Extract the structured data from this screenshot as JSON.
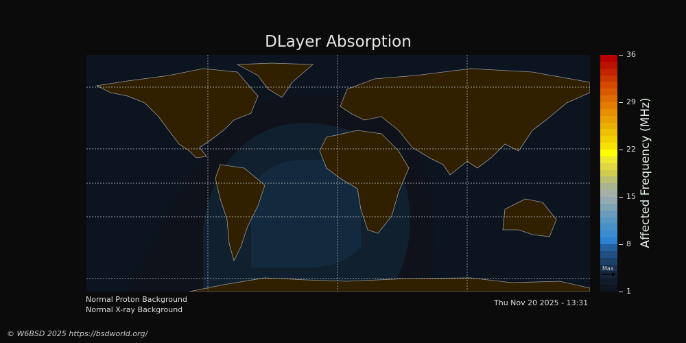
{
  "title": "DLayer Absorption",
  "status": {
    "proton": "Normal Proton Background",
    "xray": "Normal X-ray Background",
    "timestamp": "Thu Nov 20 2025 - 13:31"
  },
  "colorbar": {
    "label": "Affected Frequency (MHz)",
    "ticks": [
      "36",
      "29",
      "22",
      "15",
      "8",
      "1"
    ],
    "range": [
      1,
      36
    ],
    "max_marker": "Max",
    "colors": [
      "#0e1420",
      "#101c2c",
      "#14243a",
      "#1a3250",
      "#1d4068",
      "#1f4f84",
      "#2260a0",
      "#2a82d0",
      "#3a8cd0",
      "#4890c8",
      "#5896c4",
      "#6a9cbc",
      "#7ea4b4",
      "#92aab0",
      "#a4b0a8",
      "#aab490",
      "#bcc070",
      "#d0cc50",
      "#e0d840",
      "#eee830",
      "#ffff00",
      "#f6e000",
      "#f2d000",
      "#eec000",
      "#eab000",
      "#e8a000",
      "#e69000",
      "#e27c00",
      "#de6c00",
      "#da5a00",
      "#d44800",
      "#cc3600",
      "#c42400",
      "#bc1200",
      "#b80000"
    ],
    "map_colors": {
      "ocean": "#0c1420",
      "land": "#302000",
      "coast": "#9a9a9a",
      "zone1": "#0f121a",
      "zone2": "#10202e",
      "zone3": "#132a3e"
    }
  },
  "copyright": "© W6BSD 2025 https://bsdworld.org/"
}
